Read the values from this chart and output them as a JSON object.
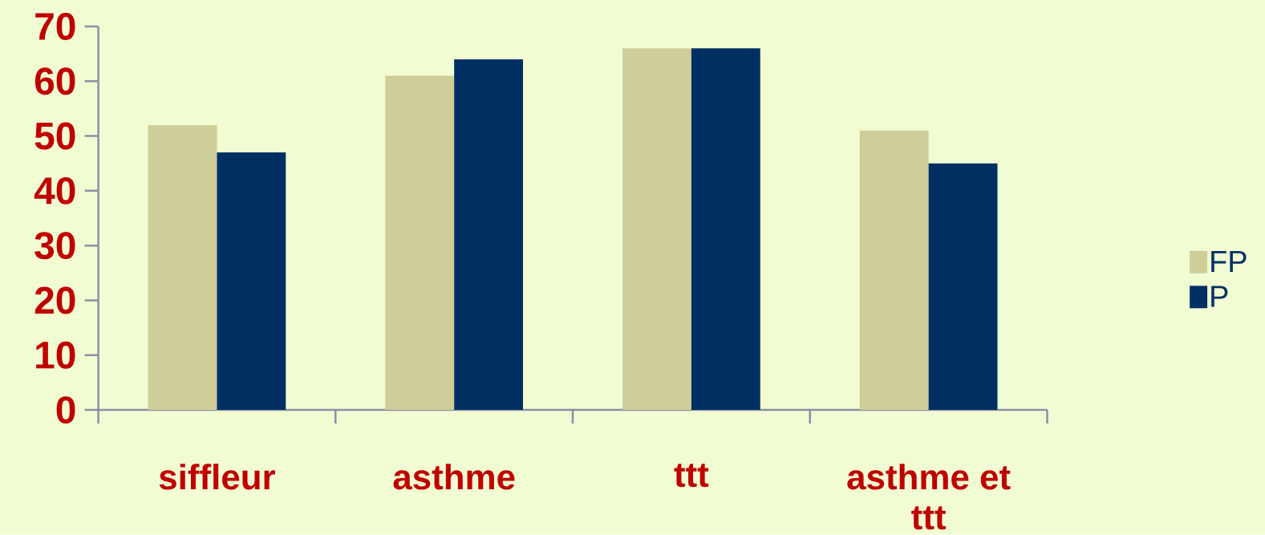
{
  "chart_data": {
    "type": "bar",
    "categories": [
      "siffleur",
      "asthme",
      "ttt",
      "asthme et ttt"
    ],
    "series": [
      {
        "name": "FP",
        "color": "#cfcd98",
        "values": [
          52,
          61,
          66,
          51
        ]
      },
      {
        "name": "P",
        "color": "#003063",
        "values": [
          47,
          64,
          66,
          45
        ]
      }
    ],
    "ylim": [
      0,
      70
    ],
    "yticks": [
      0,
      10,
      20,
      30,
      40,
      50,
      60,
      70
    ],
    "legend": "right"
  }
}
